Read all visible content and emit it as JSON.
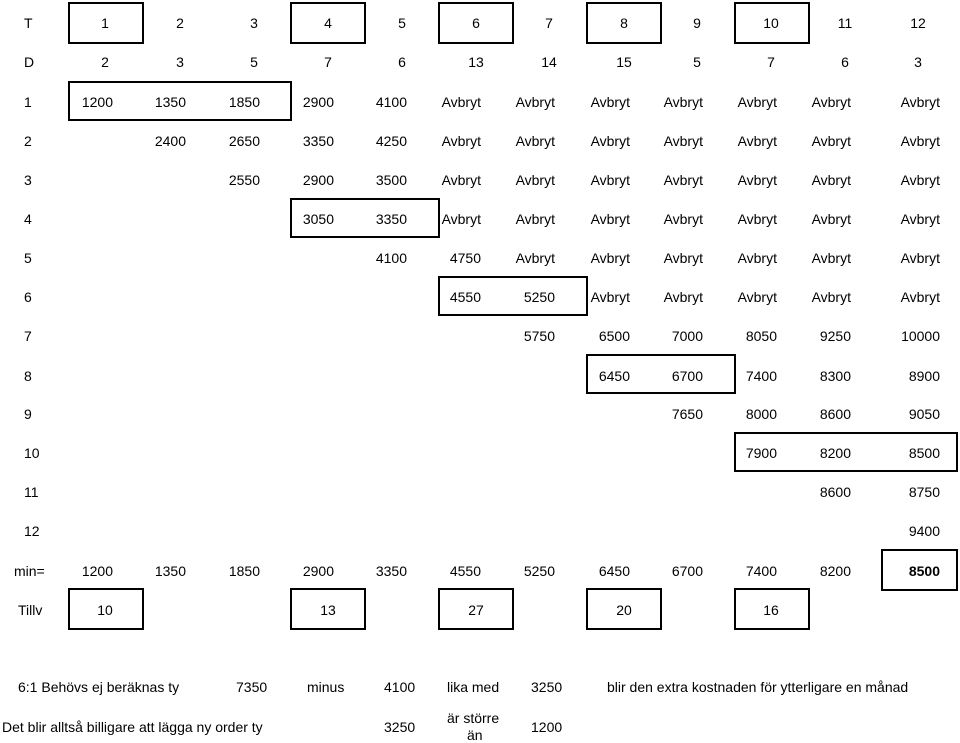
{
  "header_row": {
    "label": "T",
    "values": [
      "1",
      "2",
      "3",
      "4",
      "5",
      "6",
      "7",
      "8",
      "9",
      "10",
      "11",
      "12"
    ]
  },
  "d_row": {
    "label": "D",
    "values": [
      "2",
      "3",
      "5",
      "7",
      "6",
      "13",
      "14",
      "15",
      "5",
      "7",
      "6",
      "3"
    ]
  },
  "rows": [
    {
      "label": "1",
      "values": [
        "1200",
        "1350",
        "1850",
        "2900",
        "4100",
        "Avbryt",
        "Avbryt",
        "Avbryt",
        "Avbryt",
        "Avbryt",
        "Avbryt",
        "Avbryt"
      ]
    },
    {
      "label": "2",
      "values": [
        "",
        "2400",
        "2650",
        "3350",
        "4250",
        "Avbryt",
        "Avbryt",
        "Avbryt",
        "Avbryt",
        "Avbryt",
        "Avbryt",
        "Avbryt"
      ]
    },
    {
      "label": "3",
      "values": [
        "",
        "",
        "2550",
        "2900",
        "3500",
        "Avbryt",
        "Avbryt",
        "Avbryt",
        "Avbryt",
        "Avbryt",
        "Avbryt",
        "Avbryt"
      ]
    },
    {
      "label": "4",
      "values": [
        "",
        "",
        "",
        "3050",
        "3350",
        "Avbryt",
        "Avbryt",
        "Avbryt",
        "Avbryt",
        "Avbryt",
        "Avbryt",
        "Avbryt"
      ]
    },
    {
      "label": "5",
      "values": [
        "",
        "",
        "",
        "",
        "4100",
        "4750",
        "Avbryt",
        "Avbryt",
        "Avbryt",
        "Avbryt",
        "Avbryt",
        "Avbryt"
      ]
    },
    {
      "label": "6",
      "values": [
        "",
        "",
        "",
        "",
        "",
        "4550",
        "5250",
        "Avbryt",
        "Avbryt",
        "Avbryt",
        "Avbryt",
        "Avbryt"
      ]
    },
    {
      "label": "7",
      "values": [
        "",
        "",
        "",
        "",
        "",
        "",
        "5750",
        "6500",
        "7000",
        "8050",
        "9250",
        "10000"
      ]
    },
    {
      "label": "8",
      "values": [
        "",
        "",
        "",
        "",
        "",
        "",
        "",
        "6450",
        "6700",
        "7400",
        "8300",
        "8900"
      ]
    },
    {
      "label": "9",
      "values": [
        "",
        "",
        "",
        "",
        "",
        "",
        "",
        "",
        "7650",
        "8000",
        "8600",
        "9050"
      ]
    },
    {
      "label": "10",
      "values": [
        "",
        "",
        "",
        "",
        "",
        "",
        "",
        "",
        "",
        "7900",
        "8200",
        "8500"
      ]
    },
    {
      "label": "11",
      "values": [
        "",
        "",
        "",
        "",
        "",
        "",
        "",
        "",
        "",
        "",
        "8600",
        "8750"
      ]
    },
    {
      "label": "12",
      "values": [
        "",
        "",
        "",
        "",
        "",
        "",
        "",
        "",
        "",
        "",
        "",
        "9400"
      ]
    }
  ],
  "min_row": {
    "label": "min=",
    "values": [
      "1200",
      "1350",
      "1850",
      "2900",
      "3350",
      "4550",
      "5250",
      "6450",
      "6700",
      "7400",
      "8200",
      "8500"
    ]
  },
  "tillv_row": {
    "label": "Tillv",
    "values": [
      "10",
      "",
      "",
      "13",
      "",
      "",
      "27",
      "",
      "",
      "20",
      "",
      "",
      "16",
      "",
      ""
    ]
  },
  "note1": {
    "intro": "6:1 Behövs ej beräknas ty",
    "value_a": "7350",
    "minus": "minus",
    "value_b": "4100",
    "equals": "lika med",
    "value_c": "3250",
    "tail": "blir den extra kostnaden för ytterligare en månad"
  },
  "note2": {
    "intro": "Det blir alltså billigare att lägga ny order ty",
    "value_a": "3250",
    "compare_line1": "är större",
    "compare_line2": "än",
    "value_b": "1200"
  }
}
